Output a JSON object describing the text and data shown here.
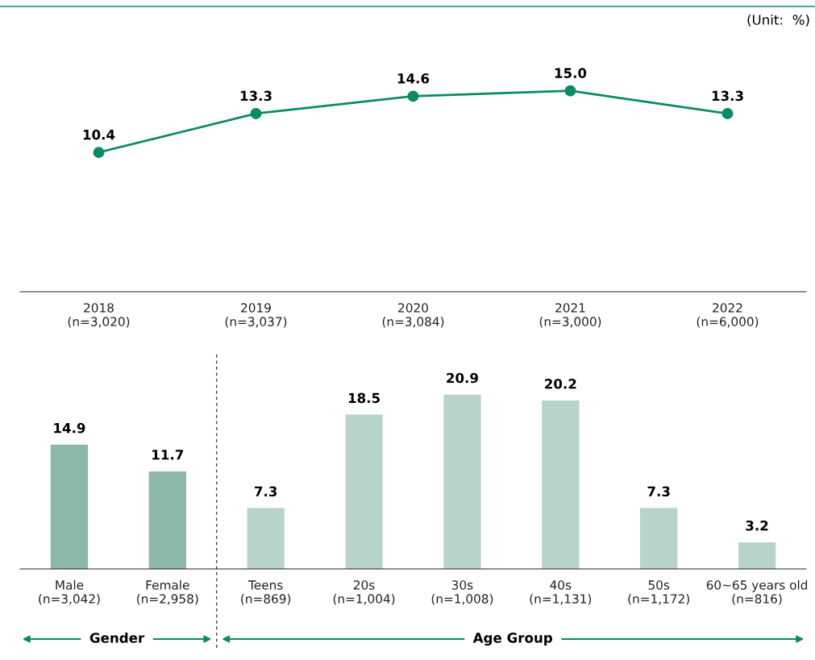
{
  "chart_data": [
    {
      "type": "line",
      "categories": [
        "2018\n(n=3,020)",
        "2019\n(n=3,037)",
        "2020\n(n=3,084)",
        "2021\n(n=3,000)",
        "2022\n(n=6,000)"
      ],
      "values": [
        10.4,
        13.3,
        14.6,
        15.0,
        13.3
      ],
      "value_labels": [
        "10.4",
        "13.3",
        "14.6",
        "15.0",
        "13.3"
      ],
      "color": "#0a8a66",
      "marker": "circle",
      "ylim": [
        0,
        21.3
      ],
      "tick_labels": "x",
      "grid": false,
      "legend": false,
      "annotations": [
        "(Unit:  %)"
      ]
    },
    {
      "type": "bar",
      "categories": [
        "Male\n(n=3,042)",
        "Female\n(n=2,958)",
        "Teens\n(n=869)",
        "20s\n(n=1,004)",
        "30s\n(n=1,008)",
        "40s\n(n=1,131)",
        "50s\n(n=1,172)",
        "60~65 years old\n(n=816)"
      ],
      "values": [
        14.9,
        11.7,
        7.3,
        18.5,
        20.9,
        20.2,
        7.3,
        3.2
      ],
      "colors": [
        "#8cb8a8",
        "#8cb8a8",
        "#b8d3c8",
        "#b8d3c8",
        "#b8d3c8",
        "#b8d3c8",
        "#b8d3c8",
        "#b8d3c8"
      ],
      "data_labels": true,
      "ylim": [
        0,
        25.7
      ],
      "tick_labels": "x",
      "grid": false,
      "legend": false,
      "annotations": [
        "Gender",
        "Age Group"
      ]
    }
  ]
}
